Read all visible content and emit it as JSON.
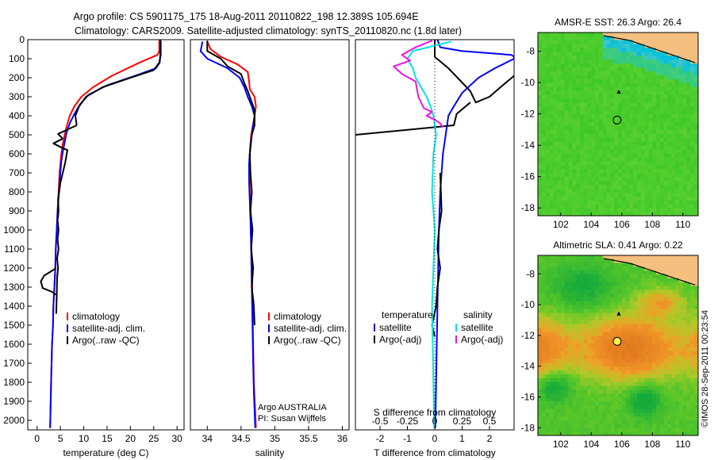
{
  "header": {
    "line1": "Argo profile: CS 5901175_175 18-Aug-2011 20110822_198 12.389S 105.694E",
    "line2": "Climatology: CARS2009. Satellite-adjusted climatology: synTS_20110820.nc (1.8d later)"
  },
  "side_text": "©IMOS 28-Sep-2011 00:23:54",
  "colors": {
    "climatology": "#ff0000",
    "satellite": "#0000ff",
    "argo": "#000000",
    "sal_satellite": "#00e5e5",
    "sal_argo": "#ee11ee",
    "land": "#f5bf7f",
    "coast": "#000000"
  },
  "chart_data": [
    {
      "id": "temperature",
      "type": "line",
      "xlabel": "temperature (deg C)",
      "ylim": [
        2050,
        0
      ],
      "xlim": [
        -2,
        31.5
      ],
      "xticks": [
        0,
        5,
        10,
        15,
        20,
        25,
        30
      ],
      "xtick_labels": [
        "0",
        "5",
        "10",
        "15",
        "20",
        "25",
        "30"
      ],
      "yticks": [
        0,
        100,
        200,
        300,
        400,
        500,
        600,
        700,
        800,
        900,
        1000,
        1100,
        1200,
        1300,
        1400,
        1500,
        1600,
        1700,
        1800,
        1900,
        2000
      ],
      "ytick_labels": [
        "0",
        "100",
        "200",
        "300",
        "400",
        "500",
        "600",
        "700",
        "800",
        "900",
        "1000",
        "1100",
        "1200",
        "1300",
        "1400",
        "1500",
        "1600",
        "1700",
        "1800",
        "1900",
        "2000"
      ],
      "legend": [
        "climatology",
        "satellite-adj. clim.",
        "Argo(..raw -QC)"
      ],
      "series": [
        {
          "name": "climatology",
          "color": "#ff0000",
          "x": [
            26.2,
            26.2,
            25.8,
            22,
            16,
            12,
            9.5,
            8,
            7,
            6.4,
            5.9,
            5.5,
            5.2,
            5.0,
            4.8,
            4.6,
            4.4,
            4.2,
            4.0,
            3.9,
            3.7,
            3.5,
            3.4,
            3.2,
            3.0,
            2.8
          ],
          "y": [
            0,
            60,
            80,
            120,
            190,
            250,
            300,
            350,
            400,
            450,
            500,
            550,
            600,
            650,
            700,
            800,
            900,
            1000,
            1100,
            1200,
            1300,
            1400,
            1500,
            1600,
            1800,
            2040
          ]
        },
        {
          "name": "satellite-adj. clim.",
          "color": "#0000ff",
          "x": [
            26.4,
            26.4,
            26.3,
            25.5,
            21,
            15,
            11,
            9.2,
            8,
            7,
            6.3,
            5.9,
            5.5,
            5.2,
            5.0,
            4.7,
            4.4,
            4.2,
            4.0,
            3.9,
            3.7,
            3.5,
            3.4,
            3.2,
            3.0,
            2.8
          ],
          "y": [
            0,
            80,
            120,
            150,
            190,
            240,
            290,
            340,
            390,
            440,
            490,
            540,
            590,
            640,
            690,
            800,
            900,
            1000,
            1100,
            1200,
            1300,
            1400,
            1500,
            1600,
            1800,
            2040
          ]
        },
        {
          "name": "Argo(..raw -QC)",
          "color": "#000000",
          "segments": [
            {
              "x": [
                26.5,
                26.5,
                26.2,
                25,
                20,
                14,
                10.5,
                9,
                8.2,
                8.5
              ],
              "y": [
                5,
                80,
                120,
                160,
                200,
                250,
                300,
                350,
                400,
                450
              ]
            },
            {
              "x": [
                8.5,
                4.5,
                5.5
              ],
              "y": [
                450,
                495,
                520
              ]
            },
            {
              "x": [
                5.5,
                3.5,
                5.5
              ],
              "y": [
                520,
                545,
                570
              ]
            },
            {
              "x": [
                5.5,
                6.5,
                6.0,
                5.0,
                4.5
              ],
              "y": [
                570,
                580,
                650,
                750,
                840
              ]
            },
            {
              "x": [
                4.5,
                4.6,
                4.4,
                4.6,
                4.4,
                4.6,
                4.3,
                4.5,
                4.3,
                4.2,
                4.1
              ],
              "y": [
                840,
                900,
                950,
                1000,
                1050,
                1100,
                1150,
                1200,
                1250,
                1350,
                1440
              ]
            },
            {
              "x": [
                4.1,
                1.5,
                0.8,
                1.2,
                3.2,
                4.0
              ],
              "y": [
                1200,
                1240,
                1270,
                1305,
                1325,
                1340
              ]
            }
          ]
        }
      ]
    },
    {
      "id": "salinity",
      "type": "line",
      "xlabel": "salinity",
      "ylim": [
        2050,
        0
      ],
      "xlim": [
        33.75,
        36.1
      ],
      "xticks": [
        34,
        34.5,
        35,
        35.5,
        36
      ],
      "xtick_labels": [
        "34",
        "34.5",
        "35",
        "35.5",
        "36"
      ],
      "legend": [
        "climatology",
        "satellite-adj. clim.",
        "Argo(..raw -QC)"
      ],
      "annotation": [
        "Argo AUSTRALIA",
        "PI: Susan Wijffels"
      ],
      "series": [
        {
          "name": "climatology",
          "color": "#ff0000",
          "x": [
            34.0,
            34.05,
            34.2,
            34.45,
            34.6,
            34.62,
            34.63,
            34.7,
            34.72,
            34.7,
            34.65,
            34.63,
            34.62,
            34.63,
            34.64,
            34.65,
            34.66,
            34.67,
            34.68,
            34.69,
            34.71,
            34.72
          ],
          "y": [
            10,
            50,
            90,
            130,
            170,
            220,
            260,
            300,
            350,
            400,
            500,
            600,
            700,
            800,
            900,
            1000,
            1200,
            1400,
            1600,
            1800,
            1950,
            2040
          ]
        },
        {
          "name": "satellite-adj. clim.",
          "color": "#0000ff",
          "x": [
            33.93,
            33.9,
            34.0,
            34.3,
            34.48,
            34.55,
            34.6,
            34.66,
            34.7,
            34.68,
            34.64,
            34.62,
            34.62,
            34.63,
            34.64,
            34.65,
            34.66,
            34.67,
            34.68,
            34.69,
            34.7,
            34.71
          ],
          "y": [
            10,
            60,
            100,
            150,
            200,
            250,
            300,
            350,
            400,
            450,
            550,
            650,
            750,
            850,
            950,
            1100,
            1300,
            1500,
            1700,
            1850,
            1950,
            2040
          ]
        },
        {
          "name": "Argo(..raw -QC)",
          "color": "#000000",
          "x": [
            34.0,
            34.0,
            34.2,
            34.3,
            34.5,
            34.55,
            34.6,
            34.65,
            34.7,
            34.7,
            34.66,
            34.63,
            34.64,
            34.66,
            34.64,
            34.67,
            34.65,
            34.68,
            34.66,
            34.69,
            34.7
          ],
          "y": [
            5,
            60,
            100,
            140,
            180,
            230,
            270,
            320,
            370,
            450,
            500,
            600,
            700,
            800,
            900,
            1000,
            1100,
            1200,
            1300,
            1400,
            1500
          ]
        }
      ]
    },
    {
      "id": "difference",
      "type": "line",
      "xlabel": "T difference from climatology",
      "top_xlabel": "S difference from climatology",
      "ylim": [
        2050,
        0
      ],
      "xlim": [
        -2.9,
        2.9
      ],
      "xticks": [
        -2,
        -1,
        0,
        1,
        2
      ],
      "xtick_labels": [
        "-2",
        "-1",
        "0",
        "1",
        "2"
      ],
      "sticks": [
        -0.5,
        -0.25,
        0,
        0.25,
        0.5
      ],
      "stick_labels": [
        "-0.5",
        "-0.25",
        "0",
        "0.25",
        "0.5"
      ],
      "s_scale": 4,
      "legend": {
        "temperature_title": "temperature",
        "salinity_title": "salinity",
        "temperature": [
          "satellite",
          "Argo(-adj)"
        ],
        "salinity": [
          "satellite",
          "Argo(-adj)"
        ]
      },
      "series": [
        {
          "name": "temperature satellite",
          "color": "#0000ff",
          "x": [
            0.1,
            0.2,
            1.0,
            2.8,
            2.9,
            2.9,
            2.2,
            1.6,
            1.0,
            0.7,
            0.5,
            0.4,
            0.3,
            0.2,
            0.15,
            0.1,
            0.05,
            0.02
          ],
          "y": [
            0,
            40,
            60,
            80,
            90,
            100,
            150,
            200,
            280,
            350,
            400,
            500,
            600,
            800,
            1000,
            1400,
            1800,
            2040
          ]
        },
        {
          "name": "temperature Argo(-adj)",
          "color": "#000000",
          "segments": [
            {
              "x": [
                0.0,
                0.0,
                0.5,
                1.3,
                1.5,
                2.0,
                2.4,
                2.9
              ],
              "y": [
                0,
                90,
                150,
                270,
                330,
                300,
                250,
                190
              ]
            },
            {
              "x": [
                1.3,
                0.8,
                0.7,
                -2.9
              ],
              "y": [
                330,
                390,
                450,
                500
              ]
            },
            {
              "x": [
                0.2,
                0.25,
                0.15,
                0.1,
                0.2,
                0.1,
                0.05,
                -0.1,
                0.0
              ],
              "y": [
                700,
                900,
                1000,
                1100,
                1200,
                1300,
                1400,
                1500,
                1560
              ]
            }
          ]
        },
        {
          "name": "salinity satellite",
          "color": "#00e5e5",
          "x": [
            0.6,
            -0.8,
            -1.0,
            -0.8,
            -0.7,
            -0.5,
            -0.3,
            -0.15,
            -0.05,
            0.0,
            0.05,
            -0.05,
            -0.1,
            0.0,
            -0.1,
            -0.05,
            -0.02
          ],
          "y": [
            10,
            60,
            100,
            150,
            200,
            250,
            300,
            350,
            400,
            450,
            500,
            600,
            800,
            1000,
            1400,
            1800,
            2040
          ]
        },
        {
          "name": "salinity Argo(-adj)",
          "color": "#ee11ee",
          "x": [
            -0.1,
            -0.7,
            -1.2,
            -0.9,
            -1.5,
            -1.2,
            -0.7,
            -0.6,
            -0.5,
            -0.4,
            -0.1,
            -0.3,
            0.0,
            0.2,
            0.3
          ],
          "y": [
            5,
            40,
            80,
            110,
            140,
            180,
            220,
            300,
            330,
            360,
            380,
            400,
            420,
            440,
            460
          ]
        }
      ]
    },
    {
      "id": "sst_map",
      "type": "heatmap",
      "title": "AMSR-E SST: 26.3 Argo: 26.4",
      "xlim": [
        100.5,
        111
      ],
      "ylim": [
        -18.5,
        -6.8
      ],
      "xticks": [
        102,
        104,
        106,
        108,
        110
      ],
      "yticks": [
        -8,
        -10,
        -12,
        -14,
        -16,
        -18
      ],
      "xtick_labels": [
        "102",
        "104",
        "106",
        "108",
        "110"
      ],
      "ytick_labels": [
        "-8",
        "-10",
        "-12",
        "-14",
        "-16",
        "-18"
      ],
      "argo_position": [
        105.694,
        -12.389
      ],
      "previous_position": [
        105.8,
        -10.6
      ]
    },
    {
      "id": "sla_map",
      "type": "heatmap",
      "title": "Altimetric SLA: 0.41 Argo: 0.22",
      "xlim": [
        100.5,
        111
      ],
      "ylim": [
        -18.5,
        -6.8
      ],
      "xticks": [
        102,
        104,
        106,
        108,
        110
      ],
      "yticks": [
        -8,
        -10,
        -12,
        -14,
        -16,
        -18
      ],
      "xtick_labels": [
        "102",
        "104",
        "106",
        "108",
        "110"
      ],
      "ytick_labels": [
        "-8",
        "-10",
        "-12",
        "-14",
        "-16",
        "-18"
      ],
      "argo_position": [
        105.694,
        -12.389
      ],
      "previous_position": [
        105.8,
        -10.6
      ]
    }
  ]
}
